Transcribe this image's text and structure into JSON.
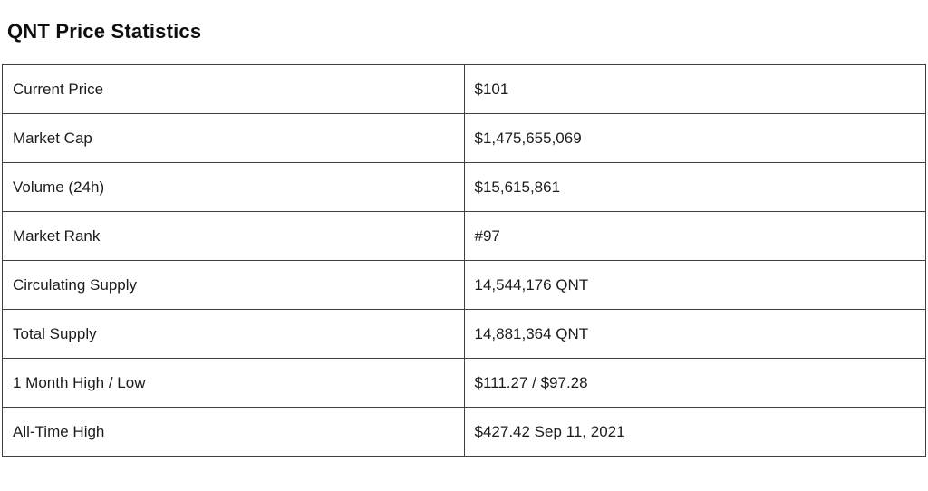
{
  "page": {
    "title": "QNT Price Statistics"
  },
  "stats_table": {
    "rows": [
      {
        "label": "Current Price",
        "value": "$101"
      },
      {
        "label": "Market Cap",
        "value": "$1,475,655,069"
      },
      {
        "label": "Volume (24h)",
        "value": "$15,615,861"
      },
      {
        "label": "Market Rank",
        "value": "#97"
      },
      {
        "label": "Circulating Supply",
        "value": "14,544,176 QNT"
      },
      {
        "label": "Total Supply",
        "value": "14,881,364 QNT"
      },
      {
        "label": "1 Month High / Low",
        "value": "$111.27 / $97.28"
      },
      {
        "label": "All-Time High",
        "value": "$427.42 Sep 11, 2021"
      }
    ]
  },
  "colors": {
    "background": "#ffffff",
    "border": "#3f3f3f",
    "text": "#1b1c20",
    "title": "#0e0e10"
  }
}
